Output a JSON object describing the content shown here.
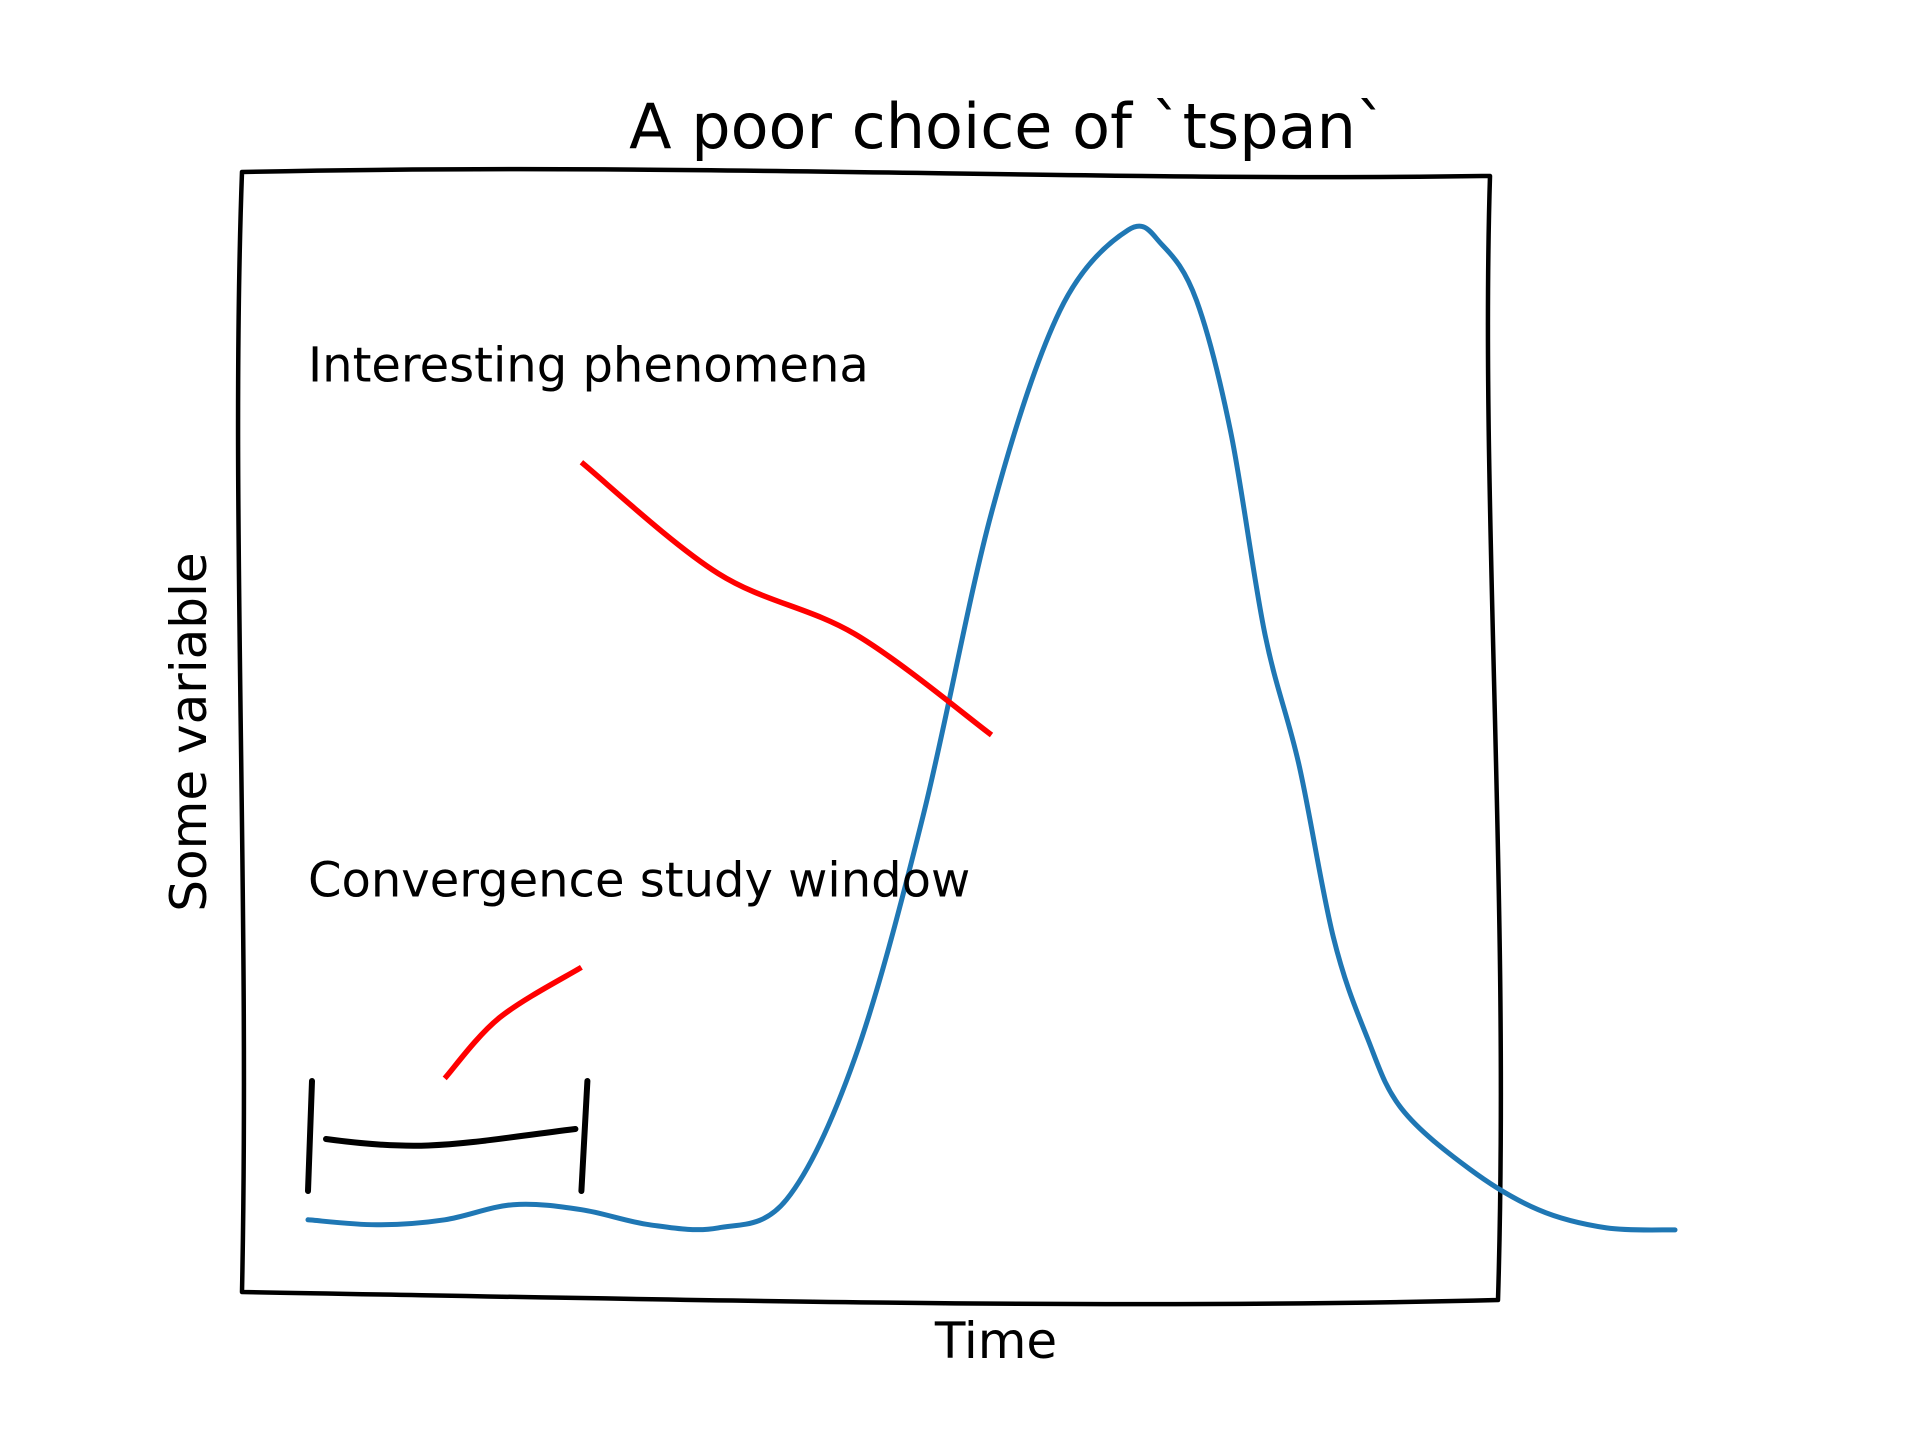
{
  "chart_data": {
    "type": "line",
    "title": "A poor choice of `tspan`",
    "xlabel": "Time",
    "ylabel": "Some variable",
    "xlim": [
      0,
      10
    ],
    "ylim": [
      0,
      1
    ],
    "grid": false,
    "series": [
      {
        "color": "#1f77b4",
        "x": [
          0.0,
          0.5,
          1.0,
          1.5,
          2.0,
          2.5,
          3.0,
          3.5,
          4.0,
          4.5,
          5.0,
          5.5,
          6.0,
          6.25,
          6.5,
          6.75,
          7.0,
          7.25,
          7.5,
          7.75,
          8.0,
          8.5,
          9.0,
          9.5,
          10.0
        ],
        "y": [
          0.02,
          0.015,
          0.02,
          0.035,
          0.03,
          0.015,
          0.012,
          0.04,
          0.18,
          0.42,
          0.72,
          0.92,
          1.0,
          0.985,
          0.93,
          0.8,
          0.6,
          0.47,
          0.3,
          0.2,
          0.13,
          0.07,
          0.03,
          0.012,
          0.01
        ]
      }
    ],
    "annotations": [
      {
        "text": "Interesting phenomena",
        "color": "#ff0000",
        "text_pos": [
          0.0,
          0.85
        ],
        "arrow_start": [
          2.0,
          0.77
        ],
        "arrow_end": [
          5.0,
          0.5
        ],
        "arrow_bend": [
          [
            3.0,
            0.66
          ],
          [
            4.0,
            0.6
          ]
        ]
      },
      {
        "text": "Convergence study window",
        "color": "#ff0000",
        "text_pos": [
          0.0,
          0.34
        ],
        "arrow_start": [
          2.0,
          0.27
        ],
        "arrow_end": [
          1.0,
          0.16
        ],
        "arrow_bend": [
          [
            1.4,
            0.22
          ]
        ]
      }
    ],
    "window_bracket": {
      "x_start": 0.0,
      "x_end": 2.0,
      "y": 0.1,
      "color": "#000000"
    }
  }
}
